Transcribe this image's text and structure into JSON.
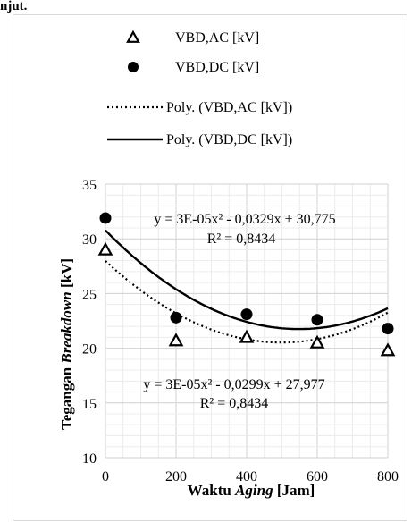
{
  "page_fragment": "njut.",
  "chart_data": {
    "type": "scatter",
    "xlabel_parts": [
      {
        "text": "Waktu ",
        "italic": false
      },
      {
        "text": "Aging",
        "italic": true
      },
      {
        "text": " [Jam]",
        "italic": false
      }
    ],
    "ylabel_parts": [
      {
        "text": "Tegangan ",
        "italic": false
      },
      {
        "text": "Breakdown",
        "italic": true
      },
      {
        "text": " [kV]",
        "italic": false
      }
    ],
    "xlim": [
      0,
      800
    ],
    "ylim": [
      10,
      35
    ],
    "x_ticks": [
      "0",
      "200",
      "400",
      "600",
      "800"
    ],
    "y_ticks": [
      "10",
      "15",
      "20",
      "25",
      "30",
      "35"
    ],
    "grid": true,
    "legend_position": "top",
    "series": [
      {
        "name": "VBD,AC [kV]",
        "marker": "triangle",
        "x": [
          0,
          200,
          400,
          600,
          800
        ],
        "y": [
          29.0,
          20.7,
          21.0,
          20.5,
          19.8
        ]
      },
      {
        "name": "VBD,DC [kV]",
        "marker": "circle",
        "x": [
          0,
          200,
          400,
          600,
          800
        ],
        "y": [
          31.9,
          22.8,
          23.1,
          22.6,
          21.8
        ]
      }
    ],
    "trendlines": [
      {
        "name": "Poly. (VBD,AC [kV])",
        "style": "dotted",
        "coefficients": [
          3e-05,
          -0.0299,
          27.977
        ],
        "equation": "y = 3E-05x² - 0,0299x + 27,977",
        "r2": "R² = 0,8434"
      },
      {
        "name": "Poly. (VBD,DC [kV])",
        "style": "solid",
        "coefficients": [
          3e-05,
          -0.0329,
          30.775
        ],
        "equation": "y = 3E-05x² - 0,0329x + 30,775",
        "r2": "R² = 0,8434"
      }
    ]
  }
}
